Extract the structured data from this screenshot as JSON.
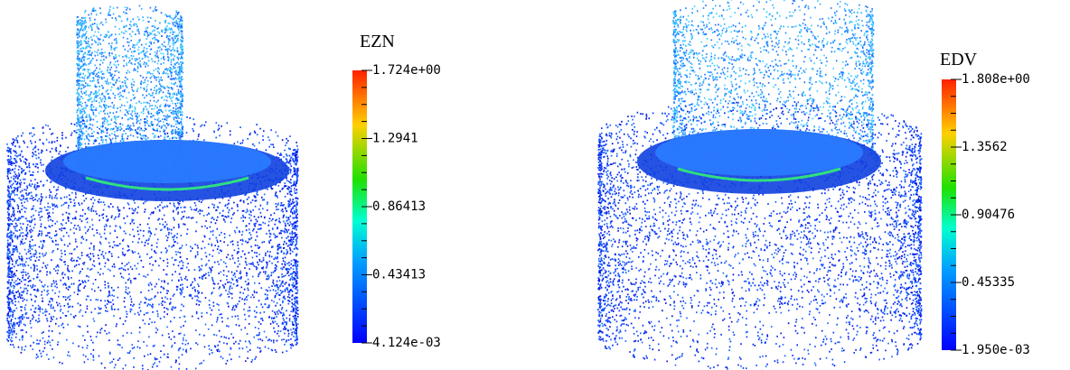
{
  "panels": [
    {
      "title": "EZN",
      "colorbar": {
        "ticks": [
          "1.724e+00",
          "1.2941",
          "0.86413",
          "0.43413",
          "4.124e-03"
        ]
      }
    },
    {
      "title": "EDV",
      "colorbar": {
        "ticks": [
          "1.808e+00",
          "1.3562",
          "0.90476",
          "0.45335",
          "1.950e-03"
        ]
      }
    }
  ]
}
